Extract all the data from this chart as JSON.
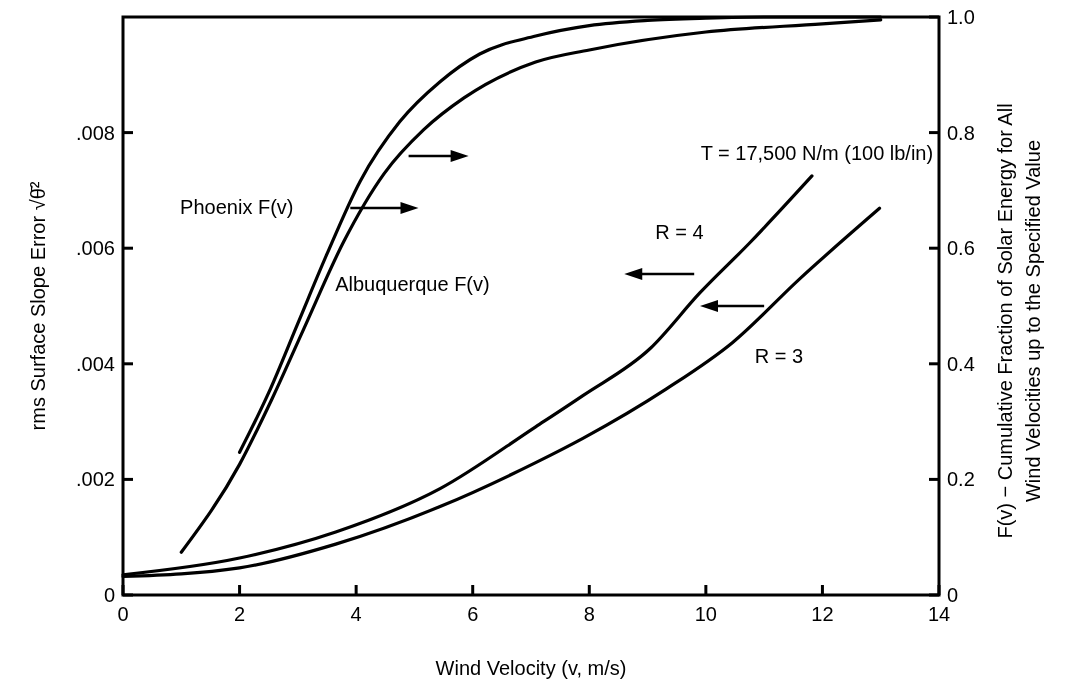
{
  "chart_data": {
    "type": "line",
    "xlabel": "Wind Velocity (v, m/s)",
    "ylabel": "rms Surface Slope Error √θ̄²",
    "y2label": "F(v) − Cumulative Fraction of Solar Energy for All\nWind Velocities up to the Specified Value",
    "annotations": [
      "T = 17,500 N/m (100 lb/in)"
    ],
    "xlim": [
      0,
      14
    ],
    "xticks": [
      0,
      2,
      4,
      6,
      8,
      10,
      12,
      14
    ],
    "ylim": [
      0,
      0.01
    ],
    "yticks": [
      0,
      {
        "value": 0.002,
        "label": ".002"
      },
      {
        "value": 0.004,
        "label": ".004"
      },
      {
        "value": 0.006,
        "label": ".006"
      },
      {
        "value": 0.008,
        "label": ".008"
      }
    ],
    "y2lim": [
      0,
      1
    ],
    "y2ticks": [
      0,
      0.2,
      0.4,
      0.6,
      0.8,
      {
        "value": 1,
        "label": "1.0"
      }
    ],
    "series": [
      {
        "name": "Phoenix F(v)",
        "color": "#000000",
        "axis": "y2",
        "x": [
          2.0,
          2.5,
          3.0,
          3.5,
          4.07,
          4.75,
          5.44,
          6.12,
          7.08,
          8,
          9,
          10,
          11,
          12,
          13
        ],
        "values": [
          0.247,
          0.35,
          0.47,
          0.59,
          0.716,
          0.819,
          0.888,
          0.936,
          0.967,
          0.985,
          0.994,
          0.998,
          1.0,
          1.0,
          1.0
        ]
      },
      {
        "name": "Albuquerque F(v)",
        "color": "#000000",
        "axis": "y2",
        "x": [
          1.0,
          2.0,
          2.56,
          3.1,
          3.79,
          4.48,
          5.16,
          5.85,
          7.08,
          8,
          10,
          12,
          13
        ],
        "values": [
          0.074,
          0.226,
          0.34,
          0.46,
          0.612,
          0.729,
          0.805,
          0.86,
          0.922,
          0.943,
          0.974,
          0.988,
          0.995
        ]
      },
      {
        "name": "R = 4",
        "color": "#000000",
        "x": [
          0,
          2.0,
          3.65,
          5.44,
          7.08,
          7.89,
          9.04,
          9.9,
          10.75,
          11.82
        ],
        "values": [
          0.00035,
          0.00064,
          0.00109,
          0.00184,
          0.00291,
          0.00345,
          0.00426,
          0.00523,
          0.00609,
          0.00725
        ]
      },
      {
        "name": "R = 3",
        "color": "#000000",
        "x": [
          0,
          2.0,
          3.65,
          5.44,
          7.08,
          7.89,
          9.33,
          10.46,
          11.61,
          12.98
        ],
        "values": [
          0.00032,
          0.00047,
          0.00088,
          0.00153,
          0.00229,
          0.00271,
          0.00357,
          0.00437,
          0.00547,
          0.00669
        ]
      }
    ]
  }
}
